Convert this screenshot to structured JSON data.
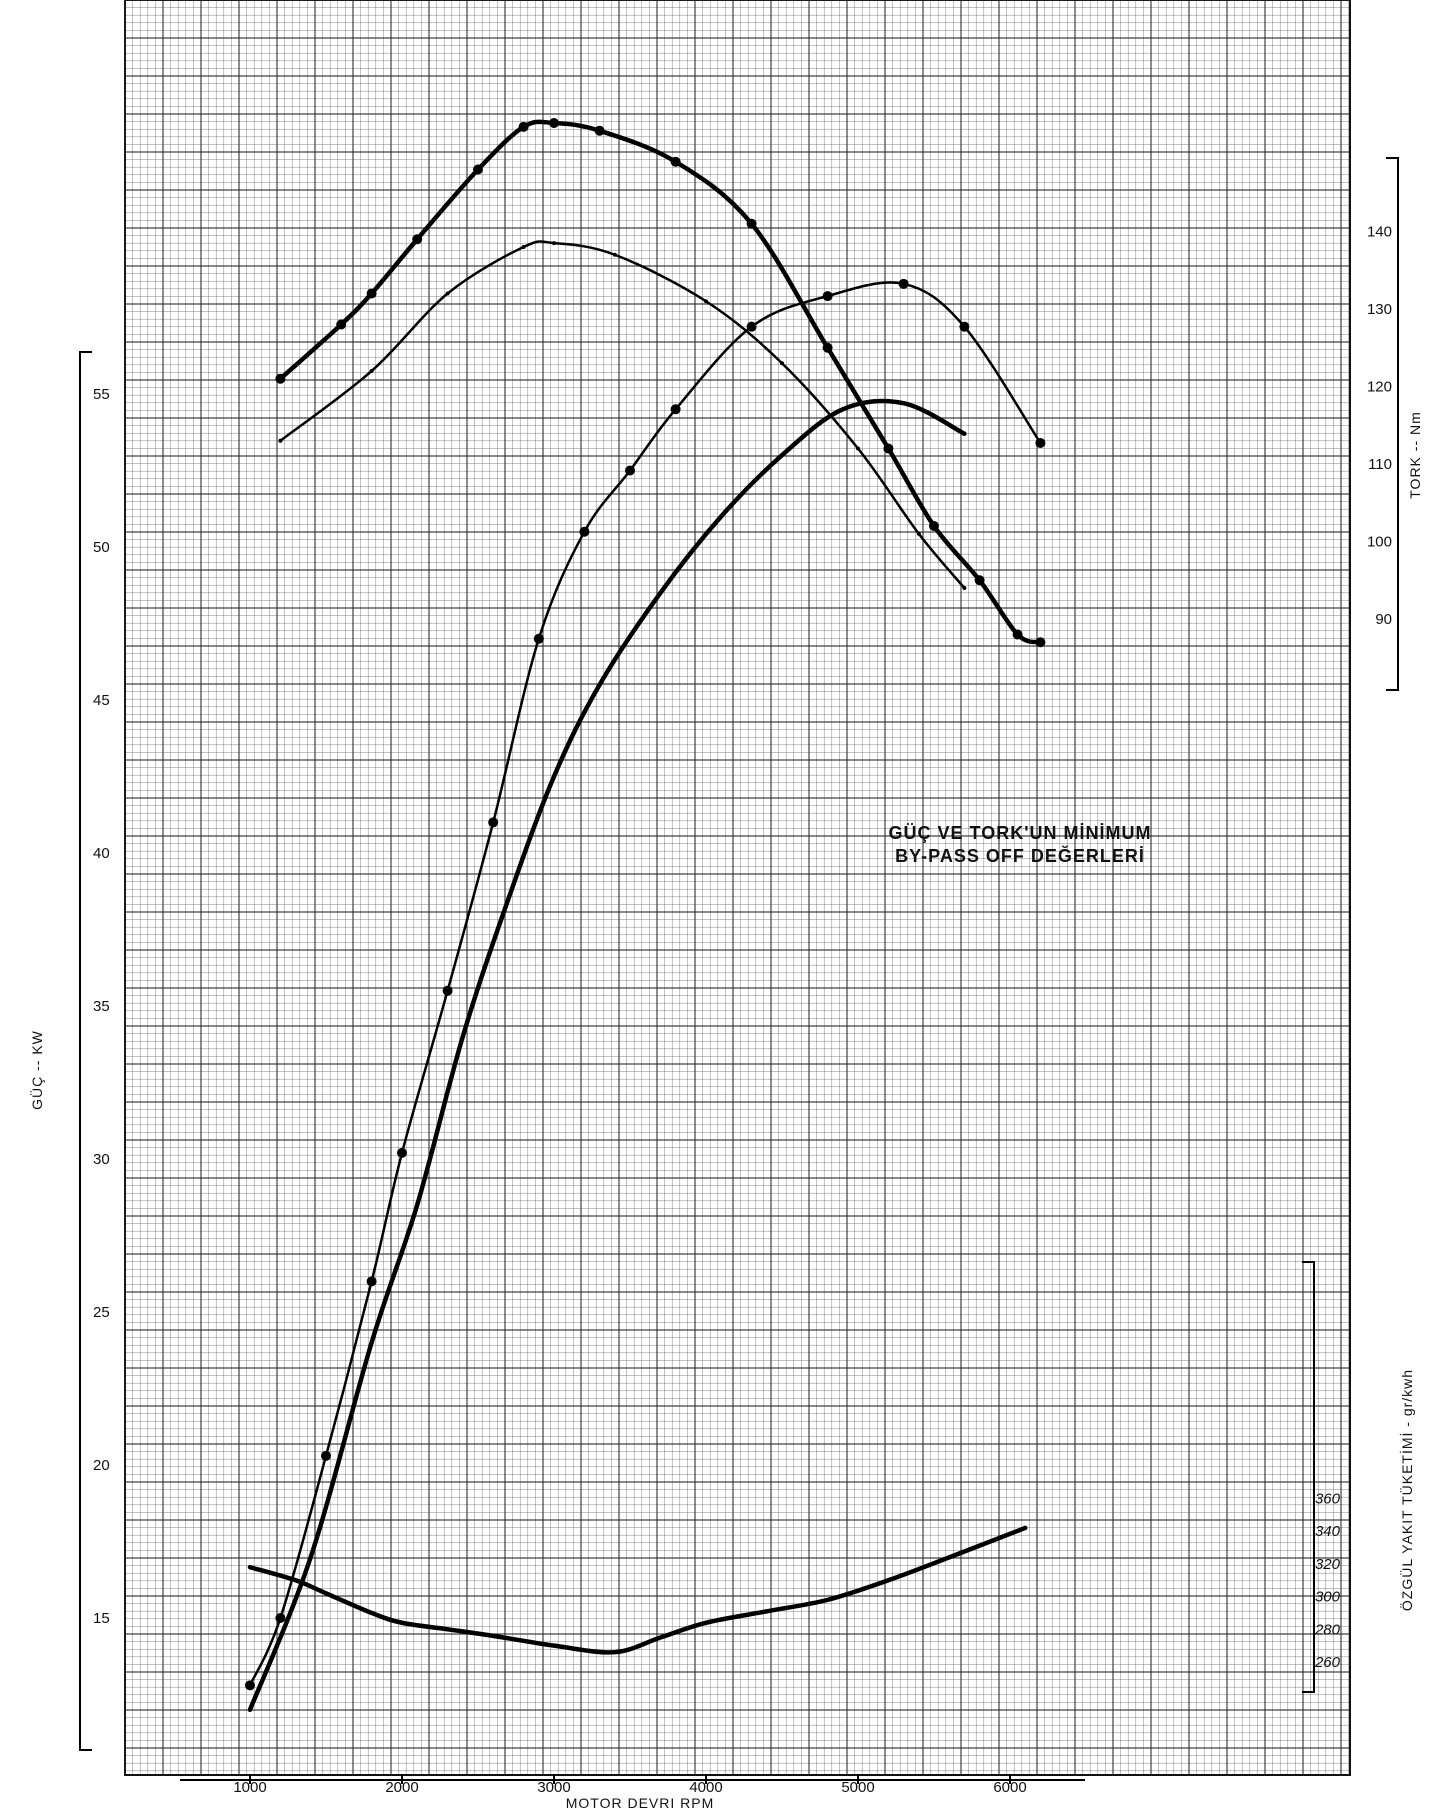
{
  "chart_data": {
    "type": "line",
    "title": "",
    "xlabel": "MOTOR DEVRI     RPM",
    "xlim": [
      500,
      7000
    ],
    "x_ticks": [
      "1000",
      "2000",
      "3000",
      "4000",
      "5000",
      "6000"
    ],
    "y_axes": {
      "power": {
        "label": "GÜÇ -- KW",
        "range": [
          10,
          58
        ],
        "ticks": [
          "15",
          "20",
          "25",
          "30",
          "35",
          "40",
          "45",
          "50",
          "55"
        ]
      },
      "torque": {
        "label": "TORK -- Nm",
        "range": [
          -10,
          162
        ],
        "ticks": [
          "90",
          "100",
          "110",
          "120",
          "130",
          "140"
        ]
      },
      "bfsc": {
        "label": "ÖZGÜL YAKIT TÜKETİMİ - gr/kwh",
        "range": [
          200,
          370
        ],
        "ticks": [
          "260",
          "280",
          "300",
          "320",
          "340",
          "360"
        ]
      }
    },
    "annotation": [
      "GÜÇ VE TORK'UN MİNİMUM",
      "BY-PASS OFF DEĞERLERİ"
    ],
    "grid": true,
    "series": [
      {
        "axis": "torque",
        "style": "bold-markers",
        "x": [
          1200,
          1600,
          1800,
          2100,
          2500,
          2800,
          3000,
          3300,
          3800,
          4300,
          4800,
          5200,
          5500,
          5800,
          6050,
          6200
        ],
        "y": [
          121,
          128,
          132,
          139,
          148,
          153.5,
          154,
          153,
          149,
          141,
          125,
          112,
          102,
          95,
          88,
          87
        ]
      },
      {
        "axis": "torque",
        "style": "thin",
        "x": [
          1200,
          1800,
          2300,
          2800,
          3000,
          3400,
          4000,
          4500,
          5000,
          5400,
          5700
        ],
        "y": [
          113,
          122,
          132,
          138,
          138.5,
          137,
          131,
          123,
          112,
          101,
          94
        ]
      },
      {
        "axis": "power",
        "style": "thin-markers",
        "x": [
          1000,
          1200,
          1500,
          1800,
          2000,
          2300,
          2600,
          2900,
          3200,
          3500,
          3800,
          4300,
          4800,
          5300,
          5700,
          6200
        ],
        "y": [
          12.8,
          15,
          20.3,
          26,
          30.2,
          35.5,
          41,
          47,
          50.5,
          52.5,
          54.5,
          57.2,
          58.2,
          58.6,
          57.2,
          53.4
        ]
      },
      {
        "axis": "power",
        "style": "bold",
        "x": [
          1000,
          1400,
          1800,
          2100,
          2400,
          2700,
          3000,
          3300,
          3700,
          4100,
          4500,
          4900,
          5300,
          5700
        ],
        "y": [
          12,
          17,
          24,
          28.5,
          34,
          38.5,
          42.5,
          45.5,
          48.5,
          51,
          53,
          54.5,
          54.7,
          53.7
        ]
      },
      {
        "axis": "bfsc",
        "style": "bold",
        "x": [
          1000,
          1300,
          1500,
          1800,
          2000,
          2300,
          2600,
          3000,
          3400,
          3700,
          4000,
          4400,
          4800,
          5200,
          5600,
          6100
        ],
        "y": [
          318,
          310,
          302,
          290,
          284,
          280,
          276,
          270,
          266,
          275,
          284,
          291,
          298,
          310,
          324,
          342
        ]
      }
    ]
  }
}
